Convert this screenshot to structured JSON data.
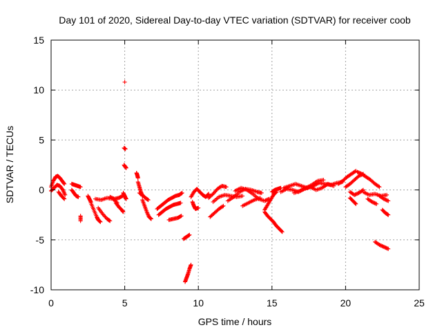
{
  "chart_data": {
    "type": "scatter",
    "title": "Day 101 of 2020, Sidereal Day-to-day VTEC variation (SDTVAR) for receiver coob",
    "xlabel": "GPS time / hours",
    "ylabel": "SDTVAR / TECUs",
    "xlim": [
      0,
      25
    ],
    "ylim": [
      -10,
      15
    ],
    "xticks": [
      0,
      5,
      10,
      15,
      20,
      25
    ],
    "yticks": [
      -10,
      -5,
      0,
      5,
      10,
      15
    ],
    "grid": true,
    "marker": "plus",
    "color": "#ff0000",
    "series": [
      {
        "name": "SDTVAR",
        "segments": [
          {
            "x": [
              0.0,
              0.15,
              0.3,
              0.45,
              0.6,
              0.75,
              0.9
            ],
            "y": [
              0.3,
              0.9,
              1.3,
              1.4,
              1.2,
              0.9,
              0.6
            ]
          },
          {
            "x": [
              0.0,
              0.2,
              0.4,
              0.6,
              0.8,
              0.95
            ],
            "y": [
              -0.1,
              0.2,
              0.5,
              0.4,
              0.0,
              -0.5
            ]
          },
          {
            "x": [
              0.5,
              0.7,
              0.9
            ],
            "y": [
              -0.2,
              -0.6,
              -0.9
            ]
          },
          {
            "x": [
              1.4,
              1.6,
              1.8,
              2.0
            ],
            "y": [
              0.6,
              0.5,
              0.4,
              0.3
            ]
          },
          {
            "x": [
              1.4,
              1.55,
              1.7,
              1.85
            ],
            "y": [
              0.0,
              -0.3,
              -0.6,
              -0.7
            ]
          },
          {
            "x": [
              2.0,
              2.0
            ],
            "y": [
              -2.6,
              -3.1
            ]
          },
          {
            "x": [
              2.5,
              2.6,
              2.7
            ],
            "y": [
              -0.6,
              -0.9,
              -1.2
            ]
          },
          {
            "x": [
              2.7,
              2.9,
              3.1,
              3.2,
              3.35
            ],
            "y": [
              -1.3,
              -2.0,
              -2.7,
              -3.0,
              -3.2
            ]
          },
          {
            "x": [
              3.0,
              3.4,
              3.8,
              4.2,
              4.5
            ],
            "y": [
              -0.9,
              -1.0,
              -0.8,
              -0.9,
              -1.3
            ]
          },
          {
            "x": [
              3.2,
              3.5,
              3.8,
              4.0
            ],
            "y": [
              -1.8,
              -2.4,
              -2.9,
              -3.1
            ]
          },
          {
            "x": [
              4.0,
              4.3,
              4.6,
              4.85
            ],
            "y": [
              -0.7,
              -0.9,
              -0.8,
              -0.6
            ]
          },
          {
            "x": [
              4.4,
              4.6,
              4.8,
              4.9
            ],
            "y": [
              -1.3,
              -1.7,
              -2.0,
              -2.2
            ]
          },
          {
            "x": [
              4.9,
              5.0,
              5.05,
              5.1
            ],
            "y": [
              -0.3,
              -0.6,
              -0.8,
              -0.9
            ]
          },
          {
            "x": [
              5.0
            ],
            "y": [
              10.8
            ]
          },
          {
            "x": [
              4.95,
              5.05
            ],
            "y": [
              4.2,
              4.1
            ]
          },
          {
            "x": [
              4.95,
              5.05,
              5.1
            ],
            "y": [
              2.5,
              2.3,
              2.2
            ]
          },
          {
            "x": [
              5.8,
              5.85,
              5.9
            ],
            "y": [
              1.7,
              1.5,
              1.2
            ]
          },
          {
            "x": [
              5.9,
              6.0,
              6.1,
              6.2
            ],
            "y": [
              0.8,
              0.3,
              -0.2,
              -0.6
            ]
          },
          {
            "x": [
              6.0,
              6.2,
              6.4,
              6.6
            ],
            "y": [
              -0.3,
              -0.5,
              -0.8,
              -1.0
            ]
          },
          {
            "x": [
              6.2,
              6.35,
              6.5,
              6.65,
              6.8
            ],
            "y": [
              -1.0,
              -1.6,
              -2.2,
              -2.7,
              -2.9
            ]
          },
          {
            "x": [
              7.2,
              7.45,
              7.7,
              7.95,
              8.2,
              8.45,
              8.7,
              8.9
            ],
            "y": [
              -1.9,
              -1.6,
              -1.3,
              -1.0,
              -0.8,
              -0.6,
              -0.5,
              -0.3
            ]
          },
          {
            "x": [
              7.3,
              7.55,
              7.8,
              8.05,
              8.3,
              8.55,
              8.8
            ],
            "y": [
              -2.5,
              -2.2,
              -1.9,
              -1.7,
              -1.5,
              -1.4,
              -1.3
            ]
          },
          {
            "x": [
              8.0,
              8.3,
              8.6,
              8.85
            ],
            "y": [
              -3.0,
              -2.9,
              -2.8,
              -2.6
            ]
          },
          {
            "x": [
              9.0,
              9.2,
              9.4
            ],
            "y": [
              -4.9,
              -4.7,
              -4.5
            ]
          },
          {
            "x": [
              9.1,
              9.2,
              9.3,
              9.4,
              9.5
            ],
            "y": [
              -9.2,
              -8.8,
              -8.4,
              -7.9,
              -7.5
            ]
          },
          {
            "x": [
              9.5,
              9.7,
              9.9,
              10.1,
              10.3,
              10.5,
              10.7
            ],
            "y": [
              -0.7,
              -0.2,
              0.1,
              -0.2,
              -0.5,
              -0.7,
              -0.4
            ]
          },
          {
            "x": [
              9.6,
              9.7,
              9.8,
              10.0
            ],
            "y": [
              -1.2,
              -1.6,
              -1.9,
              -1.8
            ]
          },
          {
            "x": [
              10.7,
              11.0,
              11.3,
              11.6,
              11.9
            ],
            "y": [
              -0.8,
              -0.4,
              0.1,
              0.4,
              0.3
            ]
          },
          {
            "x": [
              10.8,
              11.1,
              11.4,
              11.7
            ],
            "y": [
              -2.7,
              -2.3,
              -1.9,
              -1.6
            ]
          },
          {
            "x": [
              11.0,
              11.4,
              11.8,
              12.2,
              12.6,
              13.0
            ],
            "y": [
              -1.2,
              -0.7,
              -0.5,
              -0.6,
              -0.7,
              -0.6
            ]
          },
          {
            "x": [
              12.0,
              12.4,
              12.8,
              13.2,
              13.6,
              14.0,
              14.3
            ],
            "y": [
              -1.1,
              -0.7,
              -0.2,
              0.1,
              0.0,
              -0.2,
              -0.3
            ]
          },
          {
            "x": [
              12.5,
              12.9,
              13.3,
              13.7,
              14.1,
              14.5,
              14.8
            ],
            "y": [
              -0.1,
              0.2,
              0.0,
              -0.4,
              -0.9,
              -1.1,
              -0.9
            ]
          },
          {
            "x": [
              13.0,
              13.4,
              13.8,
              14.2
            ],
            "y": [
              -1.6,
              -1.3,
              -1.0,
              -0.8
            ]
          },
          {
            "x": [
              14.5,
              14.7,
              14.9,
              15.1,
              15.3
            ],
            "y": [
              -2.0,
              -1.5,
              -1.0,
              -0.5,
              -0.2
            ]
          },
          {
            "x": [
              14.5,
              14.7,
              14.9,
              15.1,
              15.3,
              15.5,
              15.7
            ],
            "y": [
              -2.2,
              -2.6,
              -2.9,
              -3.2,
              -3.6,
              -3.9,
              -4.2
            ]
          },
          {
            "x": [
              15.0,
              15.2,
              15.4,
              15.6
            ],
            "y": [
              -0.2,
              0.0,
              0.1,
              0.2
            ]
          },
          {
            "x": [
              15.8,
              16.2,
              16.6,
              17.0,
              17.4,
              17.8,
              18.2,
              18.6,
              19.0,
              19.4,
              19.8
            ],
            "y": [
              0.2,
              0.4,
              0.6,
              0.4,
              0.2,
              0.4,
              0.7,
              0.6,
              0.5,
              0.7,
              0.8
            ]
          },
          {
            "x": [
              15.6,
              16.0,
              16.4,
              16.8,
              17.2,
              17.6,
              18.0,
              18.4,
              18.8,
              19.2
            ],
            "y": [
              -0.2,
              0.1,
              0.0,
              -0.2,
              0.1,
              0.3,
              0.0,
              0.2,
              0.6,
              0.4
            ]
          },
          {
            "x": [
              16.5,
              16.9,
              17.3,
              17.7,
              18.1,
              18.5
            ],
            "y": [
              -0.3,
              -0.1,
              0.2,
              0.5,
              0.9,
              1.0
            ]
          },
          {
            "x": [
              19.5,
              19.8,
              20.1,
              20.4,
              20.7
            ],
            "y": [
              0.6,
              0.9,
              1.3,
              1.6,
              1.9
            ]
          },
          {
            "x": [
              20.0,
              20.3,
              20.6,
              20.9,
              21.2
            ],
            "y": [
              0.3,
              0.6,
              1.0,
              1.4,
              1.6
            ]
          },
          {
            "x": [
              20.8,
              21.1,
              21.4,
              21.7,
              22.0,
              22.3
            ],
            "y": [
              1.8,
              1.6,
              1.3,
              1.0,
              0.6,
              0.3
            ]
          },
          {
            "x": [
              20.3,
              20.6,
              20.9,
              21.2
            ],
            "y": [
              -0.2,
              -0.5,
              -0.3,
              0.0
            ]
          },
          {
            "x": [
              20.3,
              20.5,
              20.7
            ],
            "y": [
              -0.8,
              -1.1,
              -1.4
            ]
          },
          {
            "x": [
              21.2,
              21.6,
              22.0,
              22.4,
              22.8
            ],
            "y": [
              -0.2,
              -0.5,
              -0.4,
              -0.6,
              -0.5
            ]
          },
          {
            "x": [
              21.5,
              21.8,
              22.1
            ],
            "y": [
              -0.9,
              -1.2,
              -1.4
            ]
          },
          {
            "x": [
              22.3,
              22.6,
              22.9
            ],
            "y": [
              -0.6,
              -0.9,
              -1.1
            ]
          },
          {
            "x": [
              22.5,
              22.7,
              22.9
            ],
            "y": [
              -2.0,
              -2.3,
              -2.5
            ]
          },
          {
            "x": [
              22.0,
              22.3,
              22.6,
              22.9
            ],
            "y": [
              -5.2,
              -5.5,
              -5.7,
              -5.9
            ]
          }
        ]
      }
    ]
  }
}
